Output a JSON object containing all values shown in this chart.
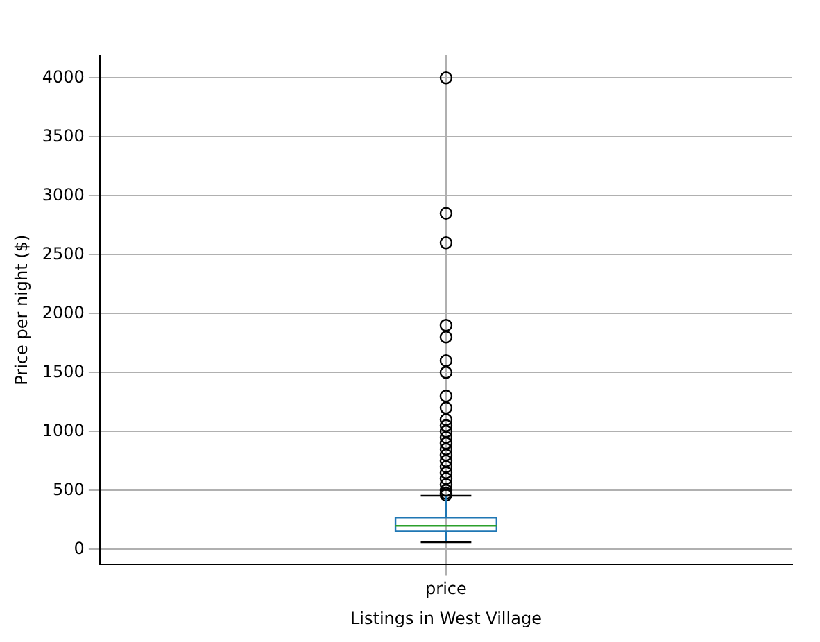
{
  "chart_data": {
    "type": "box",
    "xlabel": "Listings in West Village",
    "ylabel": "Price per night ($)",
    "categories": [
      "price"
    ],
    "boxes": [
      {
        "low": 60,
        "q1": 152,
        "median": 200,
        "q3": 270,
        "high": 455,
        "outliers": [
          4000,
          2850,
          2600,
          1900,
          1800,
          1600,
          1500,
          1300,
          1200,
          1100,
          1050,
          1000,
          950,
          900,
          850,
          800,
          750,
          700,
          650,
          600,
          550,
          500,
          475,
          460
        ]
      }
    ],
    "color": "#1f77b4",
    "ylim": [
      -130,
      4190
    ],
    "yticks": [
      0,
      500,
      1000,
      1500,
      2000,
      2500,
      3000,
      3500,
      4000
    ],
    "grid": true
  }
}
